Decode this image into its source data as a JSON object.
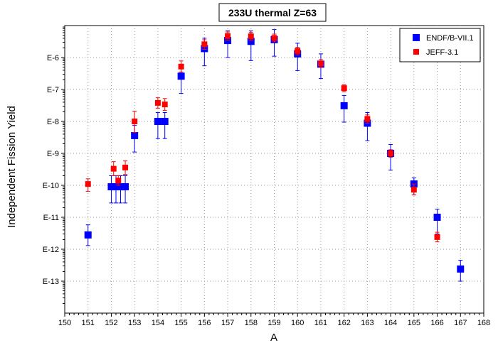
{
  "chart_data": {
    "type": "scatter",
    "title": "233U thermal Z=63",
    "xlabel": "A",
    "ylabel": "Independent Fission Yield",
    "xlim": [
      150,
      168
    ],
    "ylim": [
      1e-14,
      1e-05
    ],
    "yscale": "log",
    "grid": true,
    "legend_position": "top-right",
    "x_ticks": [
      "150",
      "151",
      "152",
      "153",
      "154",
      "155",
      "156",
      "157",
      "158",
      "159",
      "160",
      "161",
      "162",
      "163",
      "164",
      "165",
      "166",
      "167",
      "168"
    ],
    "y_ticks": [
      "E-13",
      "E-12",
      "E-11",
      "E-10",
      "E-9",
      "E-8",
      "E-7",
      "E-6"
    ],
    "series": [
      {
        "name": "ENDF/B-VII.1",
        "color": "#0000ff",
        "marker": "square",
        "points": [
          {
            "x": 151,
            "y": 2.8e-12,
            "err_lo": 1.3e-12,
            "err_hi": 5.8e-12
          },
          {
            "x": 152,
            "y": 9e-11,
            "err_lo": 2.8e-11,
            "err_hi": 2e-10
          },
          {
            "x": 152.2,
            "y": 9e-11,
            "err_lo": 2.8e-11,
            "err_hi": 2e-10
          },
          {
            "x": 152.4,
            "y": 9e-11,
            "err_lo": 2.8e-11,
            "err_hi": 2e-10
          },
          {
            "x": 152.6,
            "y": 9e-11,
            "err_lo": 2.8e-11,
            "err_hi": 2e-10
          },
          {
            "x": 153,
            "y": 3.6e-09,
            "err_lo": 1.1e-09,
            "err_hi": 7.5e-09
          },
          {
            "x": 154,
            "y": 1e-08,
            "err_lo": 2.9e-09,
            "err_hi": 1.9e-08
          },
          {
            "x": 154.3,
            "y": 1e-08,
            "err_lo": 2.9e-09,
            "err_hi": 1.9e-08
          },
          {
            "x": 155,
            "y": 2.6e-07,
            "err_lo": 7.5e-08,
            "err_hi": 5.7e-07
          },
          {
            "x": 156,
            "y": 1.9e-06,
            "err_lo": 5.5e-07,
            "err_hi": 4e-06
          },
          {
            "x": 157,
            "y": 3.4e-06,
            "err_lo": 1e-06,
            "err_hi": 6.8e-06
          },
          {
            "x": 158,
            "y": 3.2e-06,
            "err_lo": 8e-07,
            "err_hi": 6.8e-06
          },
          {
            "x": 159,
            "y": 3.6e-06,
            "err_lo": 1.1e-06,
            "err_hi": 7.5e-06
          },
          {
            "x": 160,
            "y": 1.3e-06,
            "err_lo": 3.9e-07,
            "err_hi": 2.8e-06
          },
          {
            "x": 161,
            "y": 6.2e-07,
            "err_lo": 2.2e-07,
            "err_hi": 1.3e-06
          },
          {
            "x": 162,
            "y": 3.1e-08,
            "err_lo": 9.5e-09,
            "err_hi": 6.5e-08
          },
          {
            "x": 163,
            "y": 8.8e-09,
            "err_lo": 2.5e-09,
            "err_hi": 1.9e-08
          },
          {
            "x": 164,
            "y": 1e-09,
            "err_lo": 3e-10,
            "err_hi": 1.9e-09
          },
          {
            "x": 165,
            "y": 1.1e-10,
            "err_lo": 5e-11,
            "err_hi": 1.7e-10
          },
          {
            "x": 166,
            "y": 1e-11,
            "err_lo": 3e-12,
            "err_hi": 1.8e-11
          },
          {
            "x": 167,
            "y": 2.4e-13,
            "err_lo": 1e-13,
            "err_hi": 4.5e-13
          }
        ]
      },
      {
        "name": "JEFF-3.1",
        "color": "#ff0000",
        "marker": "square",
        "points": [
          {
            "x": 151,
            "y": 1.1e-10,
            "err_lo": 6.5e-11,
            "err_hi": 1.6e-10
          },
          {
            "x": 152.1,
            "y": 3.3e-10,
            "err_lo": 2e-10,
            "err_hi": 5.5e-10
          },
          {
            "x": 152.3,
            "y": 1.4e-10,
            "err_lo": 1e-10,
            "err_hi": 2e-10
          },
          {
            "x": 152.6,
            "y": 3.6e-10,
            "err_lo": 2.2e-10,
            "err_hi": 5.8e-10
          },
          {
            "x": 153,
            "y": 1e-08,
            "err_lo": 4.5e-09,
            "err_hi": 2.1e-08
          },
          {
            "x": 154,
            "y": 3.8e-08,
            "err_lo": 2.6e-08,
            "err_hi": 5.5e-08
          },
          {
            "x": 154.3,
            "y": 3.4e-08,
            "err_lo": 2.2e-08,
            "err_hi": 5.2e-08
          },
          {
            "x": 155,
            "y": 5.2e-07,
            "err_lo": 3.5e-07,
            "err_hi": 7.8e-07
          },
          {
            "x": 156,
            "y": 2.6e-06,
            "err_lo": 1.8e-06,
            "err_hi": 3.6e-06
          },
          {
            "x": 157,
            "y": 4.7e-06,
            "err_lo": 3.5e-06,
            "err_hi": 6.3e-06
          },
          {
            "x": 158,
            "y": 4.6e-06,
            "err_lo": 3.4e-06,
            "err_hi": 6.1e-06
          },
          {
            "x": 159,
            "y": 4.1e-06,
            "err_lo": 3.1e-06,
            "err_hi": 5.4e-06
          },
          {
            "x": 160,
            "y": 1.6e-06,
            "err_lo": 1.2e-06,
            "err_hi": 2.1e-06
          },
          {
            "x": 161,
            "y": 6.5e-07,
            "err_lo": 4.9e-07,
            "err_hi": 8.6e-07
          },
          {
            "x": 162,
            "y": 1.1e-07,
            "err_lo": 8.5e-08,
            "err_hi": 1.4e-07
          },
          {
            "x": 163,
            "y": 1.2e-08,
            "err_lo": 8.8e-09,
            "err_hi": 1.6e-08
          },
          {
            "x": 164,
            "y": 1e-09,
            "err_lo": 7.5e-10,
            "err_hi": 1.3e-09
          },
          {
            "x": 165,
            "y": 7.3e-11,
            "err_lo": 5e-11,
            "err_hi": 1.1e-10
          },
          {
            "x": 166,
            "y": 2.4e-12,
            "err_lo": 1.7e-12,
            "err_hi": 3.4e-12
          }
        ]
      }
    ]
  }
}
